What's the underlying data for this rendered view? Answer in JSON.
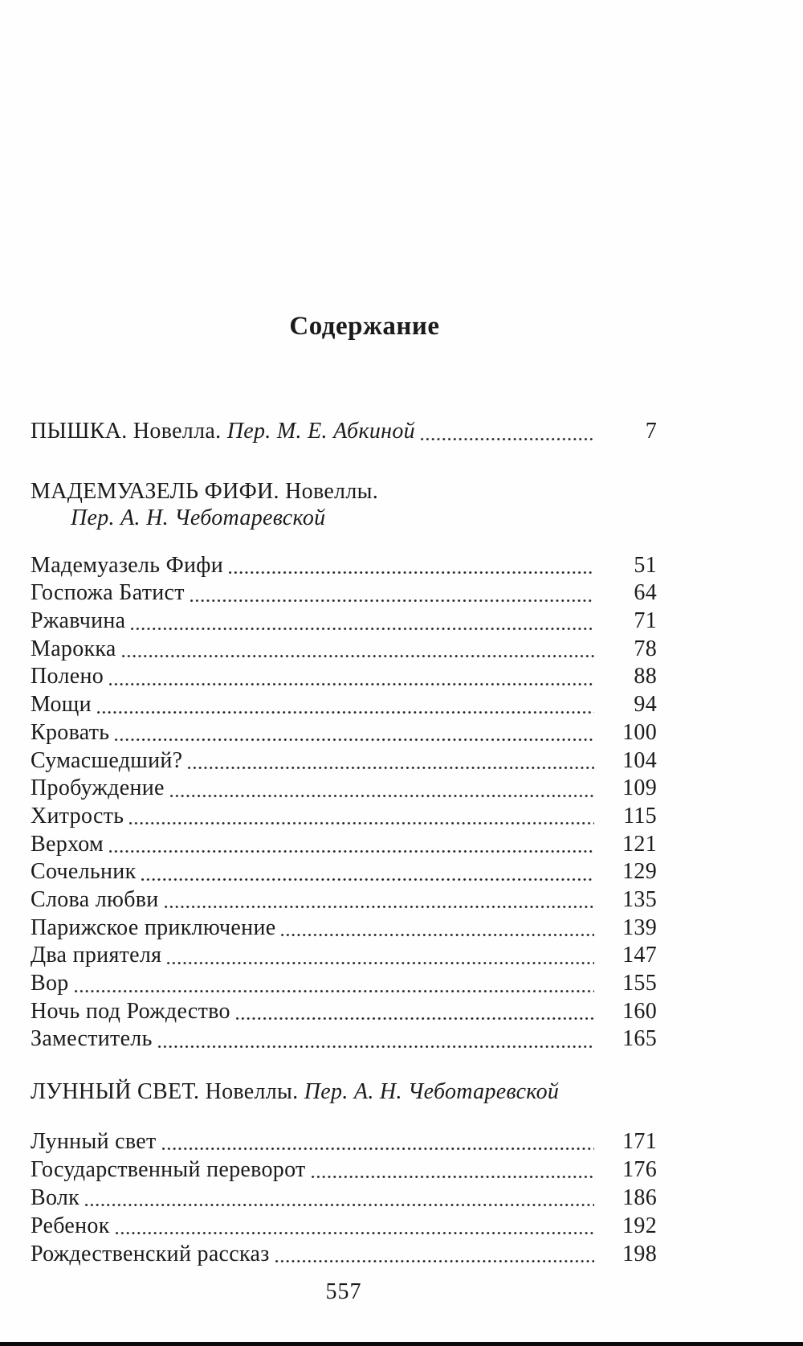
{
  "page": {
    "title": "Содержание",
    "folio": "557"
  },
  "toc": {
    "top_entry": {
      "title_caps": "ПЫШКА.",
      "genre": "Новелла.",
      "translator": "Пер. М. Е. Абкиной",
      "page": "7"
    },
    "sections": [
      {
        "heading_caps": "МАДЕМУАЗЕЛЬ ФИФИ.",
        "heading_genre": "Новеллы.",
        "translator": "Пер. А. Н. Чеботаревской",
        "entries": [
          {
            "title": "Мадемуазель Фифи",
            "page": "51"
          },
          {
            "title": "Госпожа Батист",
            "page": "64"
          },
          {
            "title": "Ржавчина",
            "page": "71"
          },
          {
            "title": "Марокка",
            "page": "78"
          },
          {
            "title": "Полено",
            "page": "88"
          },
          {
            "title": "Мощи",
            "page": "94"
          },
          {
            "title": "Кровать",
            "page": "100"
          },
          {
            "title": "Сумасшедший?",
            "page": "104"
          },
          {
            "title": "Пробуждение",
            "page": "109"
          },
          {
            "title": "Хитрость",
            "page": "115"
          },
          {
            "title": "Верхом",
            "page": "121"
          },
          {
            "title": "Сочельник",
            "page": "129"
          },
          {
            "title": "Слова любви",
            "page": "135"
          },
          {
            "title": "Парижское приключение",
            "page": "139"
          },
          {
            "title": "Два приятеля",
            "page": "147"
          },
          {
            "title": "Вор",
            "page": "155"
          },
          {
            "title": "Ночь под Рождество",
            "page": "160"
          },
          {
            "title": "Заместитель",
            "page": "165"
          }
        ]
      },
      {
        "heading_caps": "ЛУННЫЙ СВЕТ.",
        "heading_genre": "Новеллы.",
        "translator": "Пер. А. Н. Чеботаревской",
        "entries": [
          {
            "title": "Лунный свет",
            "page": "171"
          },
          {
            "title": "Государственный переворот",
            "page": "176"
          },
          {
            "title": "Волк",
            "page": "186"
          },
          {
            "title": "Ребенок",
            "page": "192"
          },
          {
            "title": "Рождественский рассказ",
            "page": "198"
          }
        ]
      }
    ]
  },
  "colors": {
    "ink": "#1b1b1b",
    "paper": "#fefefe"
  }
}
